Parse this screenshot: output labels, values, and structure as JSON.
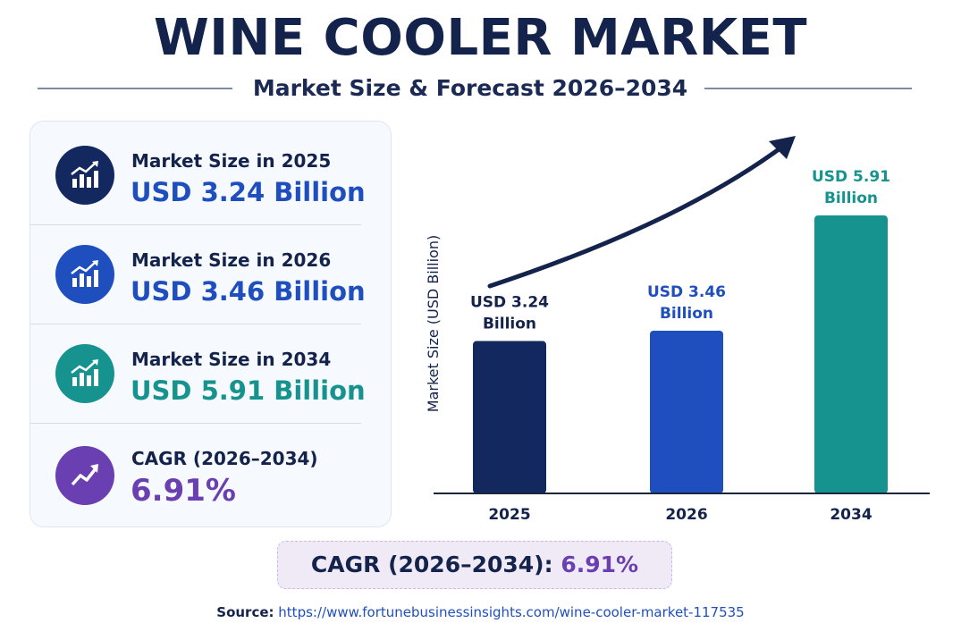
{
  "header": {
    "title": "WINE COOLER MARKET",
    "subtitle": "Market Size & Forecast 2026–2034"
  },
  "colors": {
    "navy": "#13285e",
    "blue": "#1f4fbf",
    "teal": "#17938f",
    "purple": "#6a3fb1",
    "text_dark": "#14234b"
  },
  "stats": [
    {
      "label": "Market Size in 2025",
      "value": "USD 3.24 Billion",
      "icon": "trend-chart-icon",
      "color": "#13285e",
      "value_color": "#1f4fbf"
    },
    {
      "label": "Market Size in 2026",
      "value": "USD 3.46 Billion",
      "icon": "trend-chart-icon",
      "color": "#1f4fbf",
      "value_color": "#1f4fbf"
    },
    {
      "label": "Market Size in 2034",
      "value": "USD 5.91 Billion",
      "icon": "trend-chart-icon",
      "color": "#17938f",
      "value_color": "#17938f"
    },
    {
      "label": "CAGR (2026–2034)",
      "value": "6.91%",
      "icon": "trend-arrow-icon",
      "color": "#6a3fb1",
      "value_color": "#6a3fb1"
    }
  ],
  "cagr_banner": {
    "label": "CAGR (2026–2034):",
    "value": "6.91%"
  },
  "source": {
    "label": "Source:",
    "url": "https://www.fortunebusinessinsights.com/wine-cooler-market-117535"
  },
  "chart_data": {
    "type": "bar",
    "categories": [
      "2025",
      "2026",
      "2034"
    ],
    "values": [
      3.24,
      3.46,
      5.91
    ],
    "data_labels": [
      [
        "USD 3.24",
        "Billion"
      ],
      [
        "USD 3.46",
        "Billion"
      ],
      [
        "USD 5.91",
        "Billion"
      ]
    ],
    "bar_colors": [
      "#13285e",
      "#1f4fbf",
      "#17938f"
    ],
    "label_colors": [
      "#14234b",
      "#1f4fbf",
      "#17938f"
    ],
    "ylabel": "Market Size (USD Billion)",
    "xlabel": "",
    "ylim": [
      0,
      6.5
    ],
    "grid": false,
    "trend_arrow": true
  }
}
